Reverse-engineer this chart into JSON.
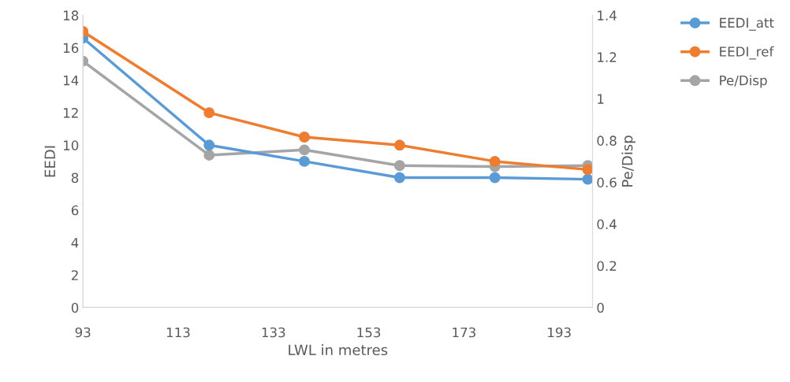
{
  "chart_data": {
    "type": "line",
    "xlabel": "LWL in metres",
    "ylabel": "EEDI",
    "y2label": "Pe/Disp",
    "x": [
      93,
      119.5,
      139.5,
      159.5,
      179.5,
      199
    ],
    "series": [
      {
        "name": "EEDI_att",
        "color": "#5b9bd5",
        "values": [
          16.6,
          10.0,
          9.0,
          8.0,
          8.0,
          7.9
        ]
      },
      {
        "name": "EEDI_ref",
        "color": "#ed7d31",
        "values": [
          17.0,
          12.0,
          10.5,
          10.0,
          9.0,
          8.5
        ]
      },
      {
        "name": "Pe/Disp",
        "color": "#a5a5a5",
        "axis": "y2",
        "values": [
          1.18,
          0.73,
          0.755,
          0.68,
          0.675,
          0.68
        ]
      }
    ],
    "xlim": [
      93,
      200
    ],
    "xticks": [
      93,
      113,
      133,
      153,
      173,
      193
    ],
    "ylim": [
      0,
      18
    ],
    "yticks": [
      0,
      2,
      4,
      6,
      8,
      10,
      12,
      14,
      16,
      18
    ],
    "y2lim": [
      0,
      1.4
    ],
    "y2ticks": [
      0,
      {
        "value": 0.2,
        "label": "0.2"
      },
      {
        "value": 0.4,
        "label": "0.4"
      },
      {
        "value": 0.6,
        "label": "0.6"
      },
      {
        "value": 0.8,
        "label": "0.8"
      },
      1,
      {
        "value": 1.2,
        "label": "1.2"
      },
      {
        "value": 1.4,
        "label": "1.4"
      }
    ],
    "grid": false,
    "legend": "top right",
    "marker": "circle",
    "line_style": "solid"
  }
}
